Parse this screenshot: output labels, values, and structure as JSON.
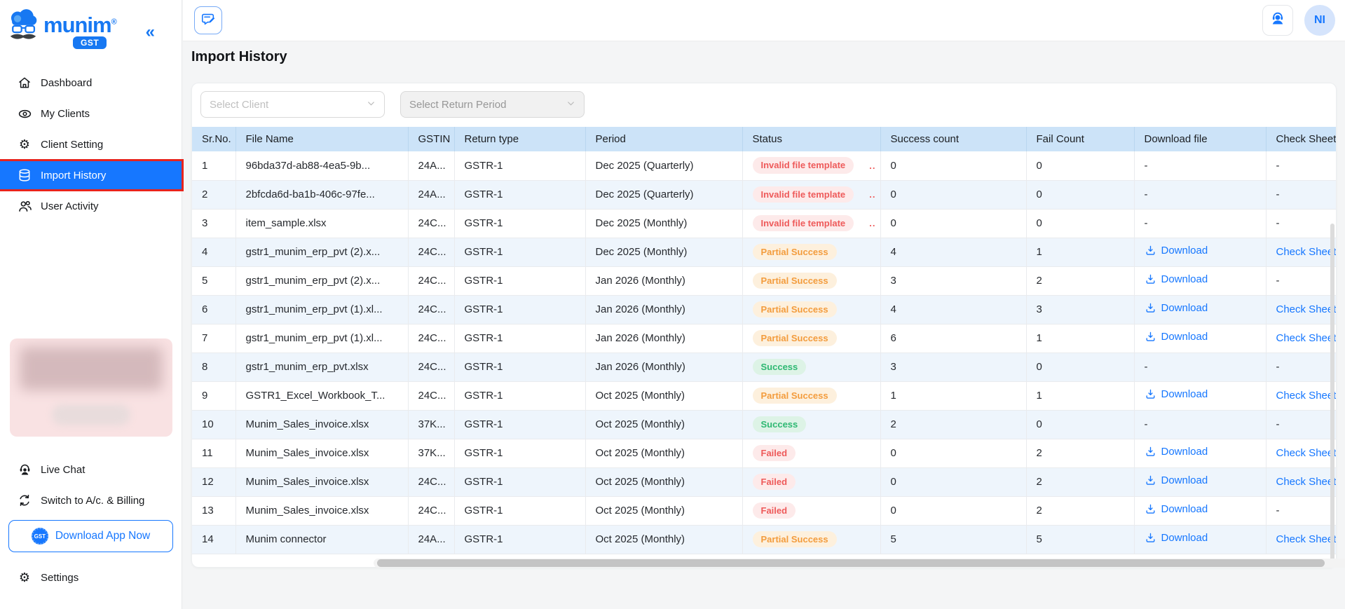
{
  "brand": {
    "name": "munim",
    "registered": "®",
    "badge": "GST",
    "collapse_icon": "«"
  },
  "sidebar": {
    "items": [
      {
        "label": "Dashboard",
        "icon": "home-icon",
        "active": false
      },
      {
        "label": "My Clients",
        "icon": "eye-icon",
        "active": false
      },
      {
        "label": "Client Setting",
        "icon": "gear-icon",
        "active": false
      },
      {
        "label": "Import History",
        "icon": "database-icon",
        "active": true
      },
      {
        "label": "User Activity",
        "icon": "users-icon",
        "active": false
      }
    ],
    "live_chat_label": "Live Chat",
    "switch_label": "Switch to A/c. & Billing",
    "download_app_label": "Download App Now",
    "download_app_badge": "GST",
    "settings_label": "Settings"
  },
  "header": {
    "page_title": "Import History",
    "avatar_initials": "NI"
  },
  "filters": {
    "client_placeholder": "Select Client",
    "return_period_placeholder": "Select Return Period"
  },
  "table": {
    "columns": [
      {
        "key": "sr",
        "label": "Sr.No."
      },
      {
        "key": "file",
        "label": "File Name"
      },
      {
        "key": "gstin",
        "label": "GSTIN"
      },
      {
        "key": "return_type",
        "label": "Return type"
      },
      {
        "key": "period",
        "label": "Period"
      },
      {
        "key": "status",
        "label": "Status"
      },
      {
        "key": "success",
        "label": "Success count"
      },
      {
        "key": "fail",
        "label": "Fail Count"
      },
      {
        "key": "download",
        "label": "Download file"
      },
      {
        "key": "check",
        "label": "Check Sheet"
      }
    ],
    "rows": [
      {
        "sr": "1",
        "file": "96bda37d-ab88-4ea5-9b...",
        "gstin": "24A...",
        "return_type": "GSTR-1",
        "period": "Dec 2025 (Quarterly)",
        "status": "Invalid file template",
        "status_type": "danger",
        "status_more": "..",
        "success": "0",
        "fail": "0",
        "download": "-",
        "check": "-"
      },
      {
        "sr": "2",
        "file": "2bfcda6d-ba1b-406c-97fe...",
        "gstin": "24A...",
        "return_type": "GSTR-1",
        "period": "Dec 2025 (Quarterly)",
        "status": "Invalid file template",
        "status_type": "danger",
        "status_more": "..",
        "success": "0",
        "fail": "0",
        "download": "-",
        "check": "-"
      },
      {
        "sr": "3",
        "file": "item_sample.xlsx",
        "gstin": "24C...",
        "return_type": "GSTR-1",
        "period": "Dec 2025 (Monthly)",
        "status": "Invalid file template",
        "status_type": "danger",
        "status_more": "..",
        "success": "0",
        "fail": "0",
        "download": "-",
        "check": "-"
      },
      {
        "sr": "4",
        "file": "gstr1_munim_erp_pvt (2).x...",
        "gstin": "24C...",
        "return_type": "GSTR-1",
        "period": "Dec 2025 (Monthly)",
        "status": "Partial Success",
        "status_type": "warning",
        "status_more": "",
        "success": "4",
        "fail": "1",
        "download": "Download",
        "check": "Check Sheet"
      },
      {
        "sr": "5",
        "file": "gstr1_munim_erp_pvt (2).x...",
        "gstin": "24C...",
        "return_type": "GSTR-1",
        "period": "Jan 2026 (Monthly)",
        "status": "Partial Success",
        "status_type": "warning",
        "status_more": "",
        "success": "3",
        "fail": "2",
        "download": "Download",
        "check": "-"
      },
      {
        "sr": "6",
        "file": "gstr1_munim_erp_pvt (1).xl...",
        "gstin": "24C...",
        "return_type": "GSTR-1",
        "period": "Jan 2026 (Monthly)",
        "status": "Partial Success",
        "status_type": "warning",
        "status_more": "",
        "success": "4",
        "fail": "3",
        "download": "Download",
        "check": "Check Sheet"
      },
      {
        "sr": "7",
        "file": "gstr1_munim_erp_pvt (1).xl...",
        "gstin": "24C...",
        "return_type": "GSTR-1",
        "period": "Jan 2026 (Monthly)",
        "status": "Partial Success",
        "status_type": "warning",
        "status_more": "",
        "success": "6",
        "fail": "1",
        "download": "Download",
        "check": "Check Sheet"
      },
      {
        "sr": "8",
        "file": "gstr1_munim_erp_pvt.xlsx",
        "gstin": "24C...",
        "return_type": "GSTR-1",
        "period": "Jan 2026 (Monthly)",
        "status": "Success",
        "status_type": "success",
        "status_more": "",
        "success": "3",
        "fail": "0",
        "download": "-",
        "check": "-"
      },
      {
        "sr": "9",
        "file": "GSTR1_Excel_Workbook_T...",
        "gstin": "24C...",
        "return_type": "GSTR-1",
        "period": "Oct 2025 (Monthly)",
        "status": "Partial Success",
        "status_type": "warning",
        "status_more": "",
        "success": "1",
        "fail": "1",
        "download": "Download",
        "check": "Check Sheet"
      },
      {
        "sr": "10",
        "file": "Munim_Sales_invoice.xlsx",
        "gstin": "37K...",
        "return_type": "GSTR-1",
        "period": "Oct 2025 (Monthly)",
        "status": "Success",
        "status_type": "success",
        "status_more": "",
        "success": "2",
        "fail": "0",
        "download": "-",
        "check": "-"
      },
      {
        "sr": "11",
        "file": "Munim_Sales_invoice.xlsx",
        "gstin": "37K...",
        "return_type": "GSTR-1",
        "period": "Oct 2025 (Monthly)",
        "status": "Failed",
        "status_type": "danger",
        "status_more": "",
        "success": "0",
        "fail": "2",
        "download": "Download",
        "check": "Check Sheet"
      },
      {
        "sr": "12",
        "file": "Munim_Sales_invoice.xlsx",
        "gstin": "24C...",
        "return_type": "GSTR-1",
        "period": "Oct 2025 (Monthly)",
        "status": "Failed",
        "status_type": "danger",
        "status_more": "",
        "success": "0",
        "fail": "2",
        "download": "Download",
        "check": "Check Sheet"
      },
      {
        "sr": "13",
        "file": "Munim_Sales_invoice.xlsx",
        "gstin": "24C...",
        "return_type": "GSTR-1",
        "period": "Oct 2025 (Monthly)",
        "status": "Failed",
        "status_type": "danger",
        "status_more": "",
        "success": "0",
        "fail": "2",
        "download": "Download",
        "check": "-"
      },
      {
        "sr": "14",
        "file": "Munim connector",
        "gstin": "24A...",
        "return_type": "GSTR-1",
        "period": "Oct 2025 (Monthly)",
        "status": "Partial Success",
        "status_type": "warning",
        "status_more": "",
        "success": "5",
        "fail": "5",
        "download": "Download",
        "check": "Check Sheet"
      }
    ]
  },
  "colors": {
    "accent": "#1677ff",
    "brand_blue": "#1778f2",
    "annotation_red": "#e8241d",
    "table_header_bg": "#cce3f8",
    "row_alt_bg": "#eef5fc",
    "success_text": "#2eb872",
    "success_bg": "#ddf3e6",
    "warning_text": "#f39c3d",
    "warning_bg": "#fdf0dd",
    "danger_text": "#ee5a5a",
    "danger_bg": "#fdeaea"
  }
}
